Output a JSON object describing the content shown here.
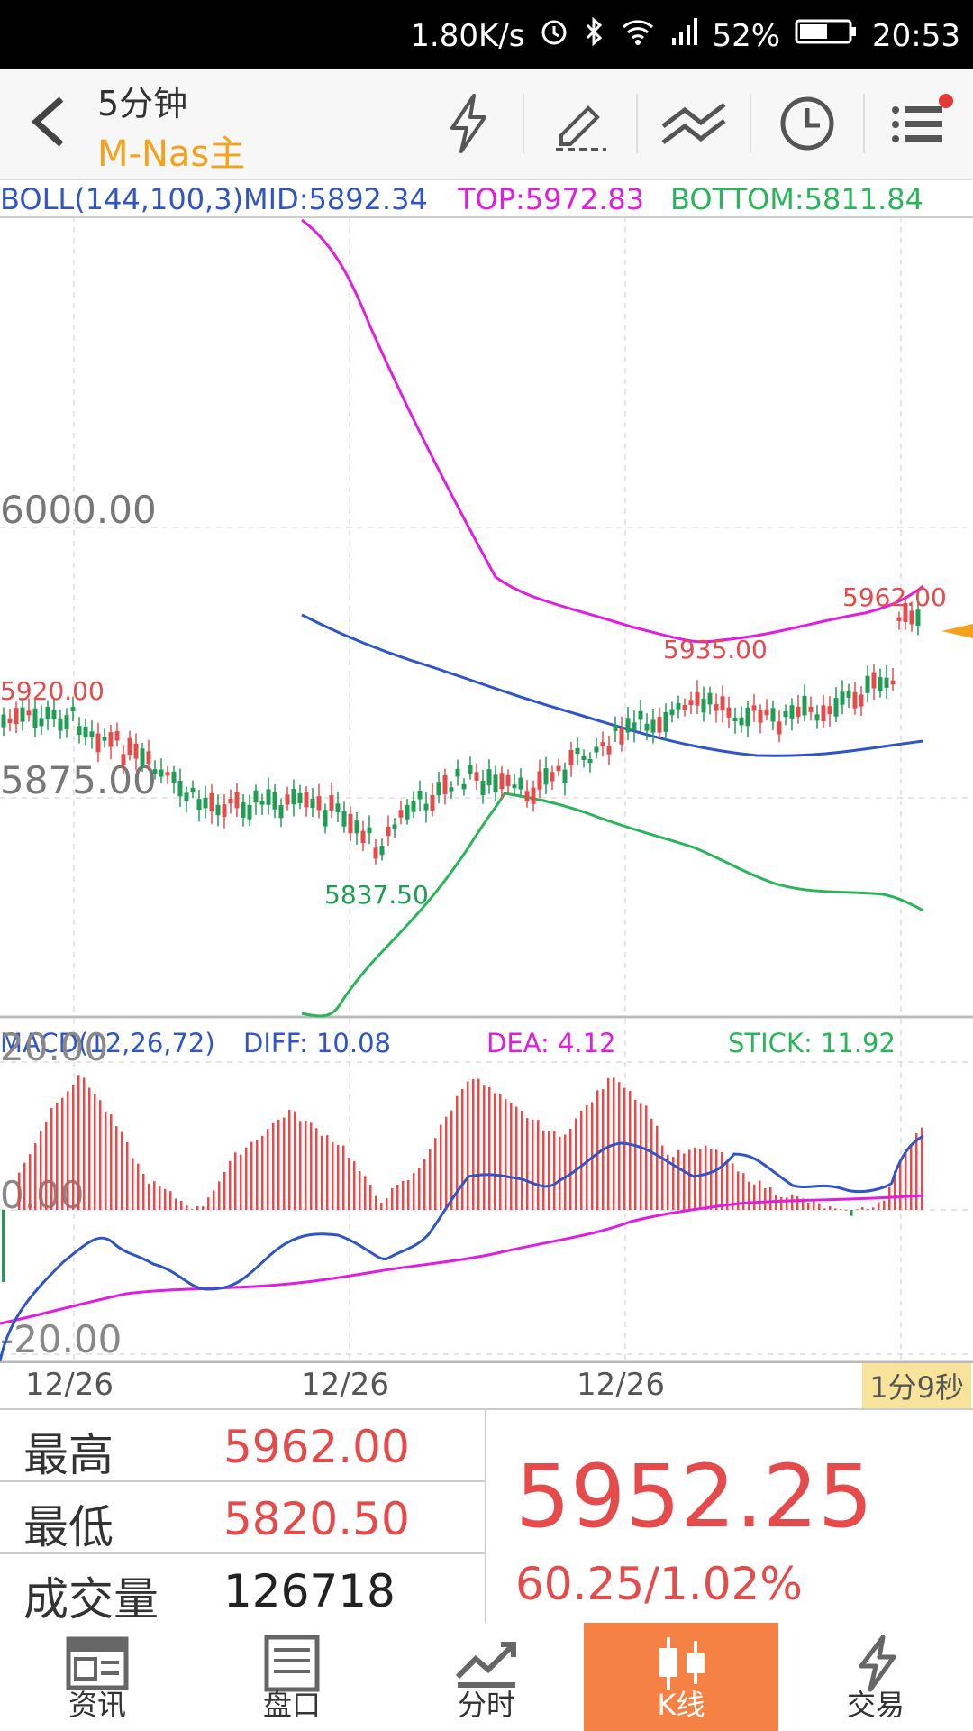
{
  "status_bar": {
    "speed": "1.80K/s",
    "battery": "52%",
    "time": "20:53"
  },
  "header": {
    "period": "5分钟",
    "symbol": "M-Nas主"
  },
  "toolbar_icons": [
    "lightning-icon",
    "pencil-icon",
    "drawing-lines-icon",
    "clock-icon",
    "menu-icon"
  ],
  "boll": {
    "label": "BOLL(144,100,3)",
    "mid": "MID:5892.34",
    "top": "TOP:5972.83",
    "bottom": "BOTTOM:5811.84"
  },
  "macd": {
    "label": "MACD(12,26,72)",
    "diff": "DIFF: 10.08",
    "dea": "DEA: 4.12",
    "stick": "STICK: 11.92"
  },
  "price_axis": {
    "p6000": "6000.00",
    "p5875": "5875.00"
  },
  "macd_axis": {
    "top": "20.00",
    "zero": "0.00",
    "bottom": "-20.00"
  },
  "annotations": {
    "high": "5962.00",
    "mid_high": "5935.00",
    "left_high": "5920.00",
    "low": "5837.50"
  },
  "dates": [
    "12/26",
    "12/26",
    "12/26"
  ],
  "countdown": "1分9秒",
  "stats": {
    "high_label": "最高",
    "high_value": "5962.00",
    "low_label": "最低",
    "low_value": "5820.50",
    "volume_label": "成交量",
    "volume_value": "126718"
  },
  "quote": {
    "price": "5952.25",
    "change": "60.25/1.02%"
  },
  "nav": [
    {
      "label": "资讯",
      "icon": "news-icon"
    },
    {
      "label": "盘口",
      "icon": "orderbook-icon"
    },
    {
      "label": "分时",
      "icon": "timeshare-icon"
    },
    {
      "label": "K线",
      "icon": "candlestick-icon"
    },
    {
      "label": "交易",
      "icon": "trade-icon"
    }
  ],
  "colors": {
    "up": "#e54b4b",
    "down": "#1f9d55",
    "mid": "#2f55c6",
    "top": "#e01ee0",
    "bottom": "#2bb55a",
    "accent": "#f3a21d",
    "nav_active": "#f58144"
  }
}
